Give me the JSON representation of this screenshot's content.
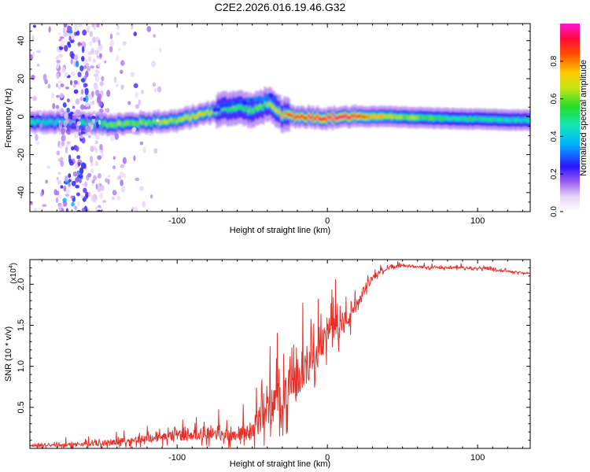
{
  "title": "C2E2.2026.016.19.46.G32",
  "chart_data": [
    {
      "type": "heatmap",
      "name": "spectrogram",
      "xlabel": "Height of straight line (km)",
      "ylabel": "Frequency (Hz)",
      "xlim": [
        -198,
        135
      ],
      "ylim": [
        -50,
        49
      ],
      "xticks": [
        -100,
        0,
        100
      ],
      "xtick_labels": [
        "-100",
        "0",
        "100"
      ],
      "yticks": [
        -40,
        -20,
        0,
        20,
        40
      ],
      "ytick_labels": [
        "-40",
        "-20",
        "0",
        "20",
        "40"
      ],
      "colorbar": {
        "label": "Normalized spectral amplitude",
        "range": [
          0.0,
          1.0
        ],
        "ticks": [
          0.0,
          0.2,
          0.4,
          0.6,
          0.8
        ],
        "tick_labels": [
          "0.0",
          "0.2",
          "0.4",
          "0.6",
          "0.8"
        ]
      },
      "ridge": {
        "x": [
          -198,
          -170,
          -140,
          -120,
          -100,
          -90,
          -80,
          -70,
          -60,
          -50,
          -45,
          -40,
          -35,
          -30,
          -20,
          -10,
          0,
          10,
          20,
          40,
          80,
          135
        ],
        "center_hz": [
          -3,
          -3,
          -4,
          -3,
          -2,
          0,
          2,
          4,
          5,
          3,
          5,
          7,
          3,
          1,
          0,
          0,
          -1,
          0,
          0,
          0,
          -1,
          -2
        ],
        "peak_amplitude": [
          0.45,
          0.45,
          0.6,
          0.6,
          0.65,
          0.7,
          0.65,
          0.6,
          0.55,
          0.55,
          0.6,
          0.6,
          0.7,
          0.8,
          0.9,
          0.9,
          0.95,
          0.95,
          0.85,
          0.7,
          0.5,
          0.45
        ]
      },
      "noise_band_x_km": [
        -180,
        -150
      ]
    },
    {
      "type": "line",
      "name": "snr",
      "xlabel": "Height of straight line (km)",
      "ylabel": "SNR (10 * v/v)",
      "multiplier_label": "(x10",
      "multiplier_exp": "4",
      "multiplier_close": ")",
      "xlim": [
        -198,
        135
      ],
      "ylim": [
        0,
        2.3
      ],
      "xticks": [
        -100,
        0,
        100
      ],
      "xtick_labels": [
        "-100",
        "0",
        "100"
      ],
      "yticks": [
        0.5,
        1.0,
        1.5,
        2.0
      ],
      "ytick_labels": [
        "0.5",
        "1.0",
        "1.5",
        "2.0"
      ],
      "color": "#e8302a",
      "series": [
        {
          "name": "SNR",
          "x": [
            -198,
            -180,
            -160,
            -140,
            -120,
            -100,
            -90,
            -80,
            -70,
            -60,
            -50,
            -45,
            -40,
            -35,
            -30,
            -25,
            -20,
            -15,
            -10,
            -5,
            0,
            5,
            10,
            15,
            20,
            25,
            30,
            35,
            40,
            50,
            60,
            80,
            100,
            120,
            135
          ],
          "y": [
            0.03,
            0.04,
            0.05,
            0.08,
            0.12,
            0.15,
            0.17,
            0.18,
            0.16,
            0.17,
            0.22,
            0.35,
            0.45,
            0.55,
            0.62,
            0.72,
            0.85,
            1.0,
            1.12,
            1.28,
            1.4,
            1.45,
            1.52,
            1.6,
            1.75,
            1.95,
            2.08,
            2.15,
            2.2,
            2.22,
            2.21,
            2.2,
            2.2,
            2.16,
            2.13
          ],
          "noise": [
            0.02,
            0.03,
            0.04,
            0.06,
            0.08,
            0.1,
            0.1,
            0.12,
            0.12,
            0.12,
            0.18,
            0.28,
            0.35,
            0.4,
            0.4,
            0.42,
            0.42,
            0.4,
            0.38,
            0.36,
            0.34,
            0.3,
            0.26,
            0.22,
            0.16,
            0.1,
            0.06,
            0.04,
            0.03,
            0.025,
            0.025,
            0.025,
            0.025,
            0.02,
            0.02
          ]
        }
      ]
    }
  ]
}
